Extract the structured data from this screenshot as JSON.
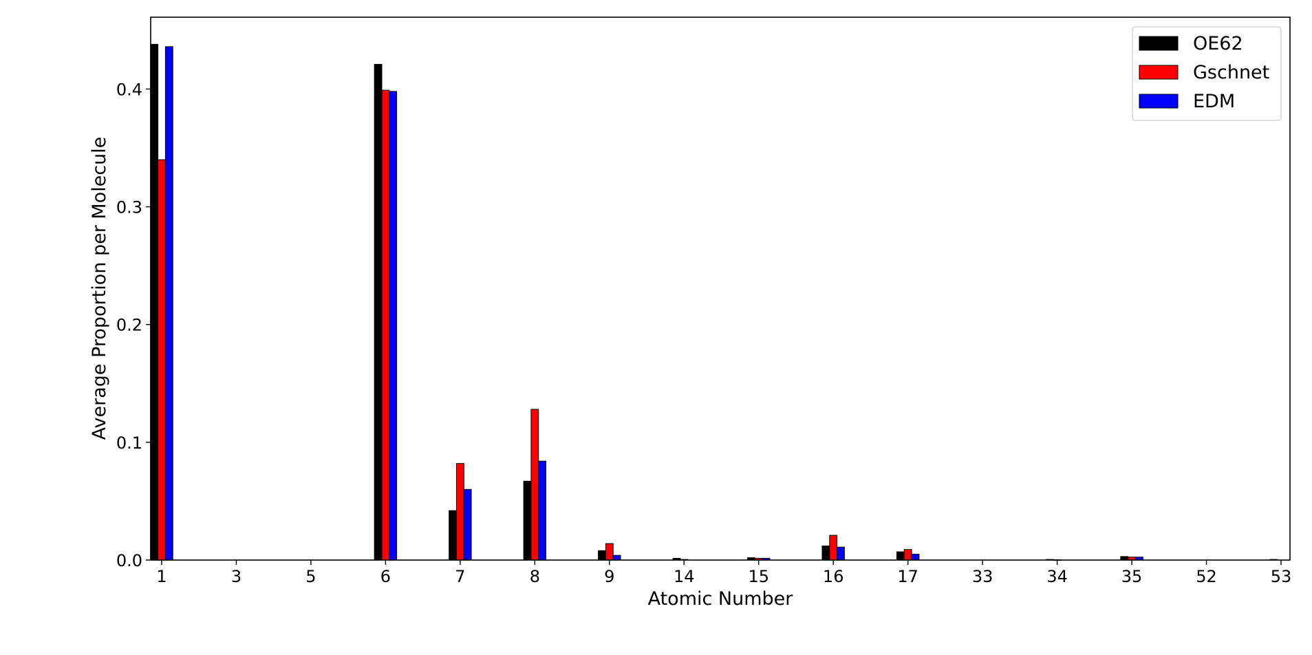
{
  "chart_data": {
    "type": "bar",
    "xlabel": "Atomic Number",
    "ylabel": "Average Proportion per Molecule",
    "categories": [
      "1",
      "3",
      "5",
      "6",
      "7",
      "8",
      "9",
      "14",
      "15",
      "16",
      "17",
      "33",
      "34",
      "35",
      "52",
      "53"
    ],
    "ylim": [
      0,
      0.461
    ],
    "yticks": [
      "0.0",
      "0.1",
      "0.2",
      "0.3",
      "0.4"
    ],
    "legend_position": "top-right",
    "grid": false,
    "series": [
      {
        "name": "OE62",
        "color": "#000000",
        "values": [
          0.438,
          0.0,
          0.0,
          0.421,
          0.042,
          0.067,
          0.008,
          0.0015,
          0.002,
          0.012,
          0.007,
          0.0,
          0.0005,
          0.003,
          0.0,
          0.0005
        ]
      },
      {
        "name": "Gschnet",
        "color": "#ff0000",
        "values": [
          0.34,
          0.0,
          0.0,
          0.399,
          0.082,
          0.128,
          0.014,
          0.0005,
          0.0015,
          0.021,
          0.009,
          0.0,
          0.0002,
          0.0025,
          0.0,
          0.0
        ]
      },
      {
        "name": "EDM",
        "color": "#0000ff",
        "values": [
          0.436,
          0.0,
          0.0,
          0.398,
          0.06,
          0.084,
          0.004,
          0.0,
          0.0015,
          0.011,
          0.005,
          0.0,
          0.0,
          0.0025,
          0.0,
          0.0
        ]
      }
    ]
  }
}
